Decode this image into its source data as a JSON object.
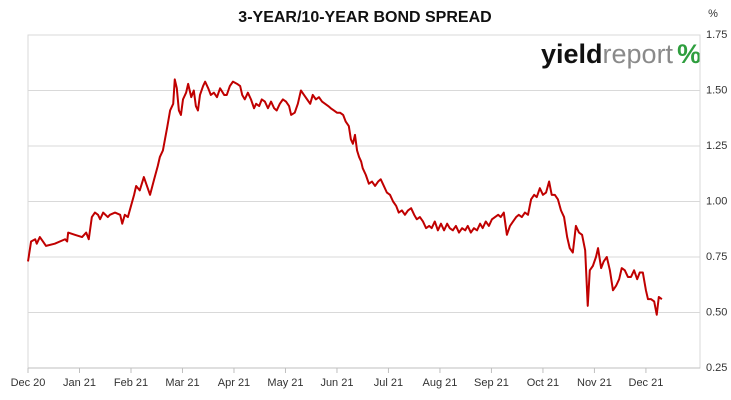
{
  "chart_data": {
    "type": "line",
    "title": "3-YEAR/10-YEAR BOND SPREAD",
    "y_label": "%",
    "brand": [
      "yield",
      "report",
      "%"
    ],
    "x": [
      0.0,
      0.06,
      0.14,
      0.17,
      0.23,
      0.29,
      0.35,
      0.52,
      0.72,
      0.76,
      0.78,
      0.91,
      1.05,
      1.13,
      1.18,
      1.24,
      1.3,
      1.36,
      1.4,
      1.46,
      1.55,
      1.59,
      1.69,
      1.79,
      1.83,
      1.88,
      1.94,
      2.0,
      2.06,
      2.1,
      2.17,
      2.25,
      2.31,
      2.37,
      2.45,
      2.52,
      2.56,
      2.62,
      2.66,
      2.7,
      2.76,
      2.82,
      2.85,
      2.89,
      2.93,
      2.97,
      3.01,
      3.07,
      3.11,
      3.17,
      3.22,
      3.26,
      3.3,
      3.34,
      3.4,
      3.44,
      3.5,
      3.55,
      3.61,
      3.67,
      3.73,
      3.81,
      3.86,
      3.92,
      3.98,
      4.06,
      4.12,
      4.16,
      4.21,
      4.27,
      4.33,
      4.39,
      4.43,
      4.49,
      4.54,
      4.6,
      4.66,
      4.72,
      4.78,
      4.83,
      4.89,
      4.95,
      5.01,
      5.07,
      5.11,
      5.18,
      5.24,
      5.3,
      5.36,
      5.42,
      5.48,
      5.53,
      5.59,
      5.65,
      5.71,
      5.77,
      5.83,
      5.88,
      5.94,
      6.0,
      6.06,
      6.12,
      6.17,
      6.23,
      6.27,
      6.31,
      6.35,
      6.39,
      6.43,
      6.47,
      6.5,
      6.56,
      6.62,
      6.68,
      6.74,
      6.8,
      6.85,
      6.91,
      6.97,
      7.03,
      7.09,
      7.15,
      7.2,
      7.26,
      7.32,
      7.38,
      7.44,
      7.5,
      7.55,
      7.61,
      7.67,
      7.73,
      7.79,
      7.84,
      7.9,
      7.96,
      8.02,
      8.08,
      8.14,
      8.19,
      8.25,
      8.31,
      8.37,
      8.43,
      8.49,
      8.54,
      8.6,
      8.66,
      8.72,
      8.78,
      8.83,
      8.89,
      8.95,
      9.01,
      9.07,
      9.13,
      9.18,
      9.24,
      9.3,
      9.36,
      9.42,
      9.48,
      9.53,
      9.59,
      9.65,
      9.71,
      9.77,
      9.83,
      9.88,
      9.94,
      10.0,
      10.06,
      10.12,
      10.17,
      10.23,
      10.29,
      10.35,
      10.41,
      10.47,
      10.52,
      10.58,
      10.64,
      10.7,
      10.76,
      10.82,
      10.87,
      10.91,
      10.97,
      11.03,
      11.07,
      11.13,
      11.18,
      11.24,
      11.3,
      11.36,
      11.42,
      11.48,
      11.53,
      11.59,
      11.65,
      11.71,
      11.77,
      11.83,
      11.88,
      11.94,
      12.0,
      12.04,
      12.1,
      12.16,
      12.21,
      12.25,
      12.31
    ],
    "series": [
      {
        "color": "#c00000",
        "values": [
          0.73,
          0.82,
          0.83,
          0.81,
          0.84,
          0.82,
          0.8,
          0.81,
          0.83,
          0.82,
          0.86,
          0.85,
          0.84,
          0.86,
          0.83,
          0.93,
          0.95,
          0.94,
          0.92,
          0.95,
          0.93,
          0.94,
          0.95,
          0.94,
          0.9,
          0.94,
          0.93,
          0.98,
          1.03,
          1.07,
          1.05,
          1.11,
          1.07,
          1.03,
          1.1,
          1.16,
          1.2,
          1.23,
          1.28,
          1.33,
          1.41,
          1.44,
          1.55,
          1.51,
          1.41,
          1.39,
          1.46,
          1.49,
          1.53,
          1.47,
          1.5,
          1.43,
          1.41,
          1.48,
          1.52,
          1.54,
          1.51,
          1.48,
          1.49,
          1.47,
          1.51,
          1.48,
          1.48,
          1.52,
          1.54,
          1.53,
          1.52,
          1.48,
          1.46,
          1.49,
          1.46,
          1.42,
          1.44,
          1.43,
          1.46,
          1.45,
          1.42,
          1.45,
          1.42,
          1.41,
          1.44,
          1.46,
          1.45,
          1.43,
          1.39,
          1.4,
          1.44,
          1.5,
          1.48,
          1.46,
          1.44,
          1.48,
          1.46,
          1.47,
          1.45,
          1.44,
          1.43,
          1.42,
          1.41,
          1.4,
          1.4,
          1.39,
          1.36,
          1.34,
          1.28,
          1.26,
          1.3,
          1.23,
          1.2,
          1.18,
          1.15,
          1.12,
          1.08,
          1.09,
          1.07,
          1.09,
          1.1,
          1.07,
          1.04,
          1.03,
          1.0,
          0.98,
          0.95,
          0.96,
          0.94,
          0.96,
          0.97,
          0.94,
          0.92,
          0.93,
          0.91,
          0.88,
          0.89,
          0.88,
          0.91,
          0.87,
          0.9,
          0.87,
          0.9,
          0.88,
          0.87,
          0.89,
          0.86,
          0.88,
          0.87,
          0.89,
          0.86,
          0.88,
          0.87,
          0.9,
          0.88,
          0.91,
          0.89,
          0.92,
          0.93,
          0.94,
          0.93,
          0.95,
          0.85,
          0.89,
          0.91,
          0.93,
          0.94,
          0.93,
          0.95,
          0.94,
          1.01,
          1.03,
          1.02,
          1.06,
          1.03,
          1.04,
          1.09,
          1.03,
          1.03,
          1.01,
          0.96,
          0.93,
          0.84,
          0.79,
          0.77,
          0.89,
          0.86,
          0.85,
          0.78,
          0.53,
          0.69,
          0.71,
          0.75,
          0.79,
          0.7,
          0.73,
          0.75,
          0.69,
          0.6,
          0.62,
          0.65,
          0.7,
          0.69,
          0.66,
          0.66,
          0.69,
          0.65,
          0.68,
          0.68,
          0.6,
          0.56,
          0.56,
          0.55,
          0.49,
          0.57,
          0.56
        ]
      }
    ],
    "xlim": [
      0,
      13.05
    ],
    "xticks": [
      {
        "value": 0,
        "label": "Dec 20"
      },
      {
        "value": 1,
        "label": "Jan 21"
      },
      {
        "value": 2,
        "label": "Feb 21"
      },
      {
        "value": 3,
        "label": "Mar 21"
      },
      {
        "value": 4,
        "label": "Apr 21"
      },
      {
        "value": 5,
        "label": "May 21"
      },
      {
        "value": 6,
        "label": "Jun 21"
      },
      {
        "value": 7,
        "label": "Jul 21"
      },
      {
        "value": 8,
        "label": "Aug 21"
      },
      {
        "value": 9,
        "label": "Sep 21"
      },
      {
        "value": 10,
        "label": "Oct 21"
      },
      {
        "value": 11,
        "label": "Nov 21"
      },
      {
        "value": 12,
        "label": "Dec 21"
      }
    ],
    "ylim": [
      0.25,
      1.75
    ],
    "yticks": [
      {
        "value": 0.25,
        "label": "0.25"
      },
      {
        "value": 0.5,
        "label": "0.50"
      },
      {
        "value": 0.75,
        "label": "0.75"
      },
      {
        "value": 1,
        "label": "1.00"
      },
      {
        "value": 1.25,
        "label": "1.25"
      },
      {
        "value": 1.5,
        "label": "1.50"
      },
      {
        "value": 1.75,
        "label": "1.75"
      }
    ],
    "grid": true
  }
}
